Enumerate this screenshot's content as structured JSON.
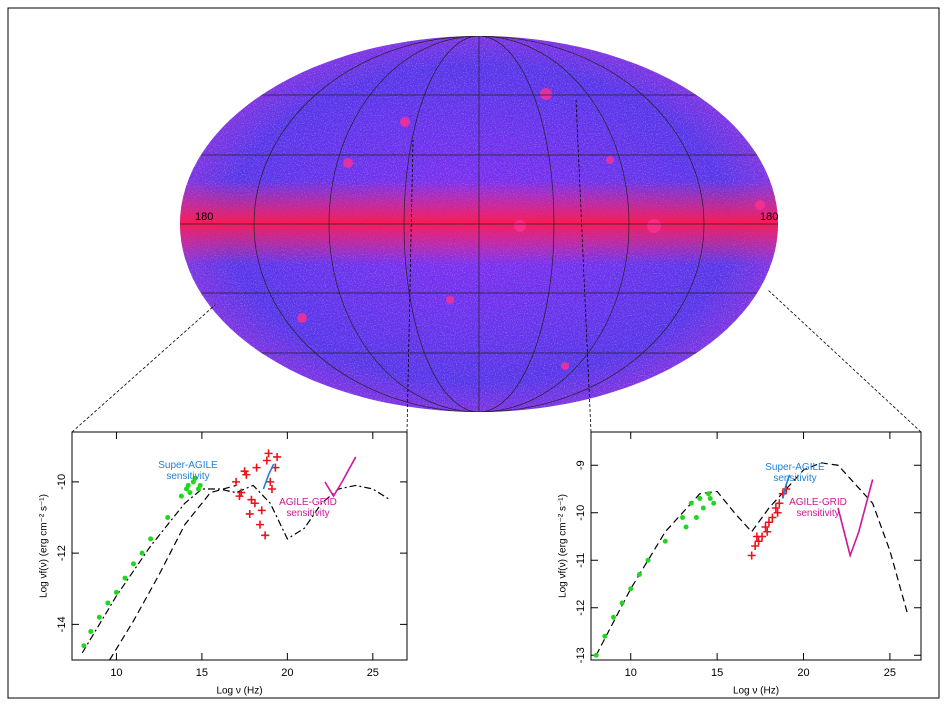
{
  "sky_map": {
    "labels": [
      "180",
      "180"
    ]
  },
  "chart_data": [
    {
      "type": "scatter",
      "xlabel": "Log ν (Hz)",
      "ylabel": "Log νf(ν) (erg cm⁻² s⁻¹)",
      "xlim": [
        7.4,
        27
      ],
      "ylim": [
        -15,
        -8.6
      ],
      "xticks": [
        10,
        15,
        20,
        25
      ],
      "yticks": [
        -14,
        -12,
        -10
      ],
      "annotations": [
        {
          "text": "Super-AGILE sensitivity",
          "color": "#1e7fd6"
        },
        {
          "text": "AGILE-GRID sensitivity",
          "color": "#d0169a"
        }
      ],
      "series": [
        {
          "style": "dashdot",
          "color": "#000000",
          "x": [
            8,
            10,
            12,
            14,
            15,
            16,
            17,
            18,
            19,
            20,
            21,
            22,
            23,
            24,
            25,
            26
          ],
          "values": [
            -14.8,
            -13.2,
            -11.8,
            -10.6,
            -10.2,
            -10.2,
            -10.3,
            -10.1,
            -10.6,
            -11.6,
            -11.3,
            -10.6,
            -10.2,
            -10.1,
            -10.2,
            -10.5
          ]
        },
        {
          "style": "dashed",
          "color": "#000000",
          "x": [
            9.6,
            11,
            12.5,
            14,
            15.5,
            17
          ],
          "values": [
            -15,
            -13.9,
            -12.6,
            -11.2,
            -10.3,
            -10.1
          ]
        },
        {
          "style": "dot",
          "color": "#22d61f",
          "x": [
            8.1,
            8.5,
            9,
            9.5,
            10,
            10.5,
            11,
            11.5,
            12,
            13,
            13.8,
            14.2,
            14.5,
            14.8,
            14.3,
            14.6,
            14.1,
            14.9
          ],
          "values": [
            -14.6,
            -14.2,
            -13.8,
            -13.4,
            -13.1,
            -12.7,
            -12.3,
            -12,
            -11.6,
            -11,
            -10.4,
            -10.1,
            -10,
            -10.2,
            -10.3,
            -9.9,
            -10.2,
            -10.1
          ]
        },
        {
          "style": "cross",
          "color": "#e8141a",
          "x": [
            17,
            17.3,
            17.6,
            17.9,
            18.2,
            18.5,
            18.8,
            19.1,
            19.4,
            17.2,
            17.8,
            18.4,
            19,
            17.5,
            18.1,
            18.7,
            19.3,
            18.9
          ],
          "values": [
            -10,
            -10.3,
            -9.8,
            -10.5,
            -9.6,
            -10.8,
            -9.4,
            -10.2,
            -9.3,
            -10.4,
            -10.9,
            -11.2,
            -10,
            -9.7,
            -10.6,
            -11.5,
            -9.6,
            -9.2
          ]
        },
        {
          "style": "line",
          "color": "#1e7fd6",
          "x": [
            18.6,
            18.9,
            19.2
          ],
          "values": [
            -10.2,
            -9.8,
            -9.5
          ]
        },
        {
          "style": "line",
          "color": "#d0169a",
          "x": [
            22.2,
            22.7,
            23.2,
            24
          ],
          "values": [
            -10,
            -10.4,
            -10,
            -9.3
          ]
        }
      ]
    },
    {
      "type": "scatter",
      "xlabel": "Log ν (Hz)",
      "ylabel": "Log νf(ν) (erg cm⁻² s⁻¹)",
      "xlim": [
        7.7,
        26.8
      ],
      "ylim": [
        -13.1,
        -8.3
      ],
      "xticks": [
        10,
        15,
        20,
        25
      ],
      "yticks": [
        -13,
        -12,
        -11,
        -10,
        -9
      ],
      "annotations": [
        {
          "text": "Super-AGILE sensitivity",
          "color": "#1e7fd6"
        },
        {
          "text": "AGILE-GRID sensitivity",
          "color": "#d0169a"
        }
      ],
      "series": [
        {
          "style": "dashed",
          "color": "#000000",
          "x": [
            8,
            10,
            12,
            14,
            15,
            16,
            17,
            18,
            20,
            21,
            22,
            24,
            25,
            26
          ],
          "values": [
            -13,
            -11.6,
            -10.4,
            -9.6,
            -9.55,
            -10,
            -10.4,
            -9.9,
            -9.1,
            -8.95,
            -9,
            -9.8,
            -10.8,
            -12.1
          ]
        },
        {
          "style": "dot",
          "color": "#22d61f",
          "x": [
            8,
            8.5,
            9,
            9.5,
            10,
            10.5,
            11,
            12,
            13,
            13.5,
            14,
            14.5,
            14.8,
            14.2,
            13.8,
            14.6,
            13.2
          ],
          "values": [
            -13,
            -12.6,
            -12.2,
            -11.9,
            -11.6,
            -11.3,
            -11,
            -10.6,
            -10.1,
            -9.8,
            -9.7,
            -9.6,
            -9.8,
            -9.9,
            -10.1,
            -9.7,
            -10.3
          ]
        },
        {
          "style": "cross",
          "color": "#e8141a",
          "x": [
            17,
            17.2,
            17.4,
            17.6,
            17.8,
            18,
            18.2,
            18.4,
            18.6,
            18.8,
            19,
            17.3,
            17.9,
            18.5
          ],
          "values": [
            -10.9,
            -10.7,
            -10.6,
            -10.5,
            -10.3,
            -10.2,
            -10.1,
            -9.9,
            -9.8,
            -9.6,
            -9.5,
            -10.5,
            -10.4,
            -10
          ]
        },
        {
          "style": "line",
          "color": "#1e7fd6",
          "x": [
            18.8,
            19,
            19.2
          ],
          "values": [
            -9.7,
            -9.4,
            -9.2
          ]
        },
        {
          "style": "line",
          "color": "#d0169a",
          "x": [
            22,
            22.7,
            23.2,
            24
          ],
          "values": [
            -9.9,
            -10.9,
            -10.4,
            -9.3
          ]
        }
      ]
    }
  ]
}
